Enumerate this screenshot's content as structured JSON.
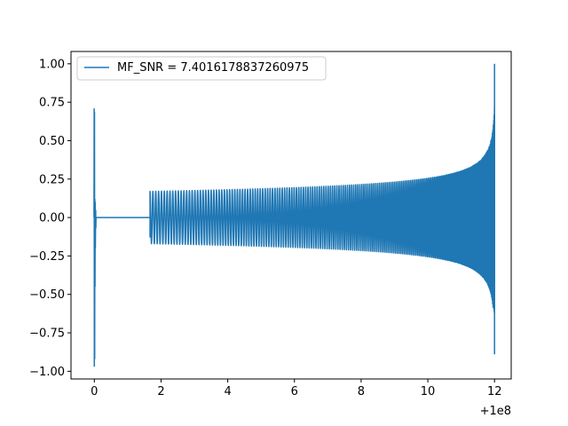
{
  "chart_data": {
    "type": "line",
    "title": "",
    "xlabel": "",
    "ylabel": "",
    "x_offset_label": "+1e8",
    "xlim": [
      -0.7,
      12.5
    ],
    "ylim": [
      -1.05,
      1.08
    ],
    "xticks": [
      0,
      2,
      4,
      6,
      8,
      10,
      12
    ],
    "xtick_labels": [
      "0",
      "2",
      "4",
      "6",
      "8",
      "10",
      "12"
    ],
    "yticks": [
      -1.0,
      -0.75,
      -0.5,
      -0.25,
      0.0,
      0.25,
      0.5,
      0.75,
      1.0
    ],
    "ytick_labels": [
      "−1.00",
      "−0.75",
      "−0.50",
      "−0.25",
      "0.00",
      "0.25",
      "0.50",
      "0.75",
      "1.00"
    ],
    "grid": false,
    "legend_position": "top-left",
    "series": [
      {
        "name": "MF_SNR = 7.4016178837260975",
        "color": "#1f77b4",
        "segments": [
          {
            "kind": "burst",
            "x": 0.0,
            "y_max": 0.71,
            "y_min": -0.97
          },
          {
            "kind": "flat",
            "x_start": 0.05,
            "x_end": 1.67,
            "y": 0.0
          },
          {
            "kind": "chirp",
            "x_start": 1.67,
            "x_end": 12.0,
            "y_start": -0.13,
            "amplitude_start": 0.17,
            "amplitude_end_upper": 1.0,
            "amplitude_end_lower": -0.89
          }
        ]
      }
    ]
  }
}
